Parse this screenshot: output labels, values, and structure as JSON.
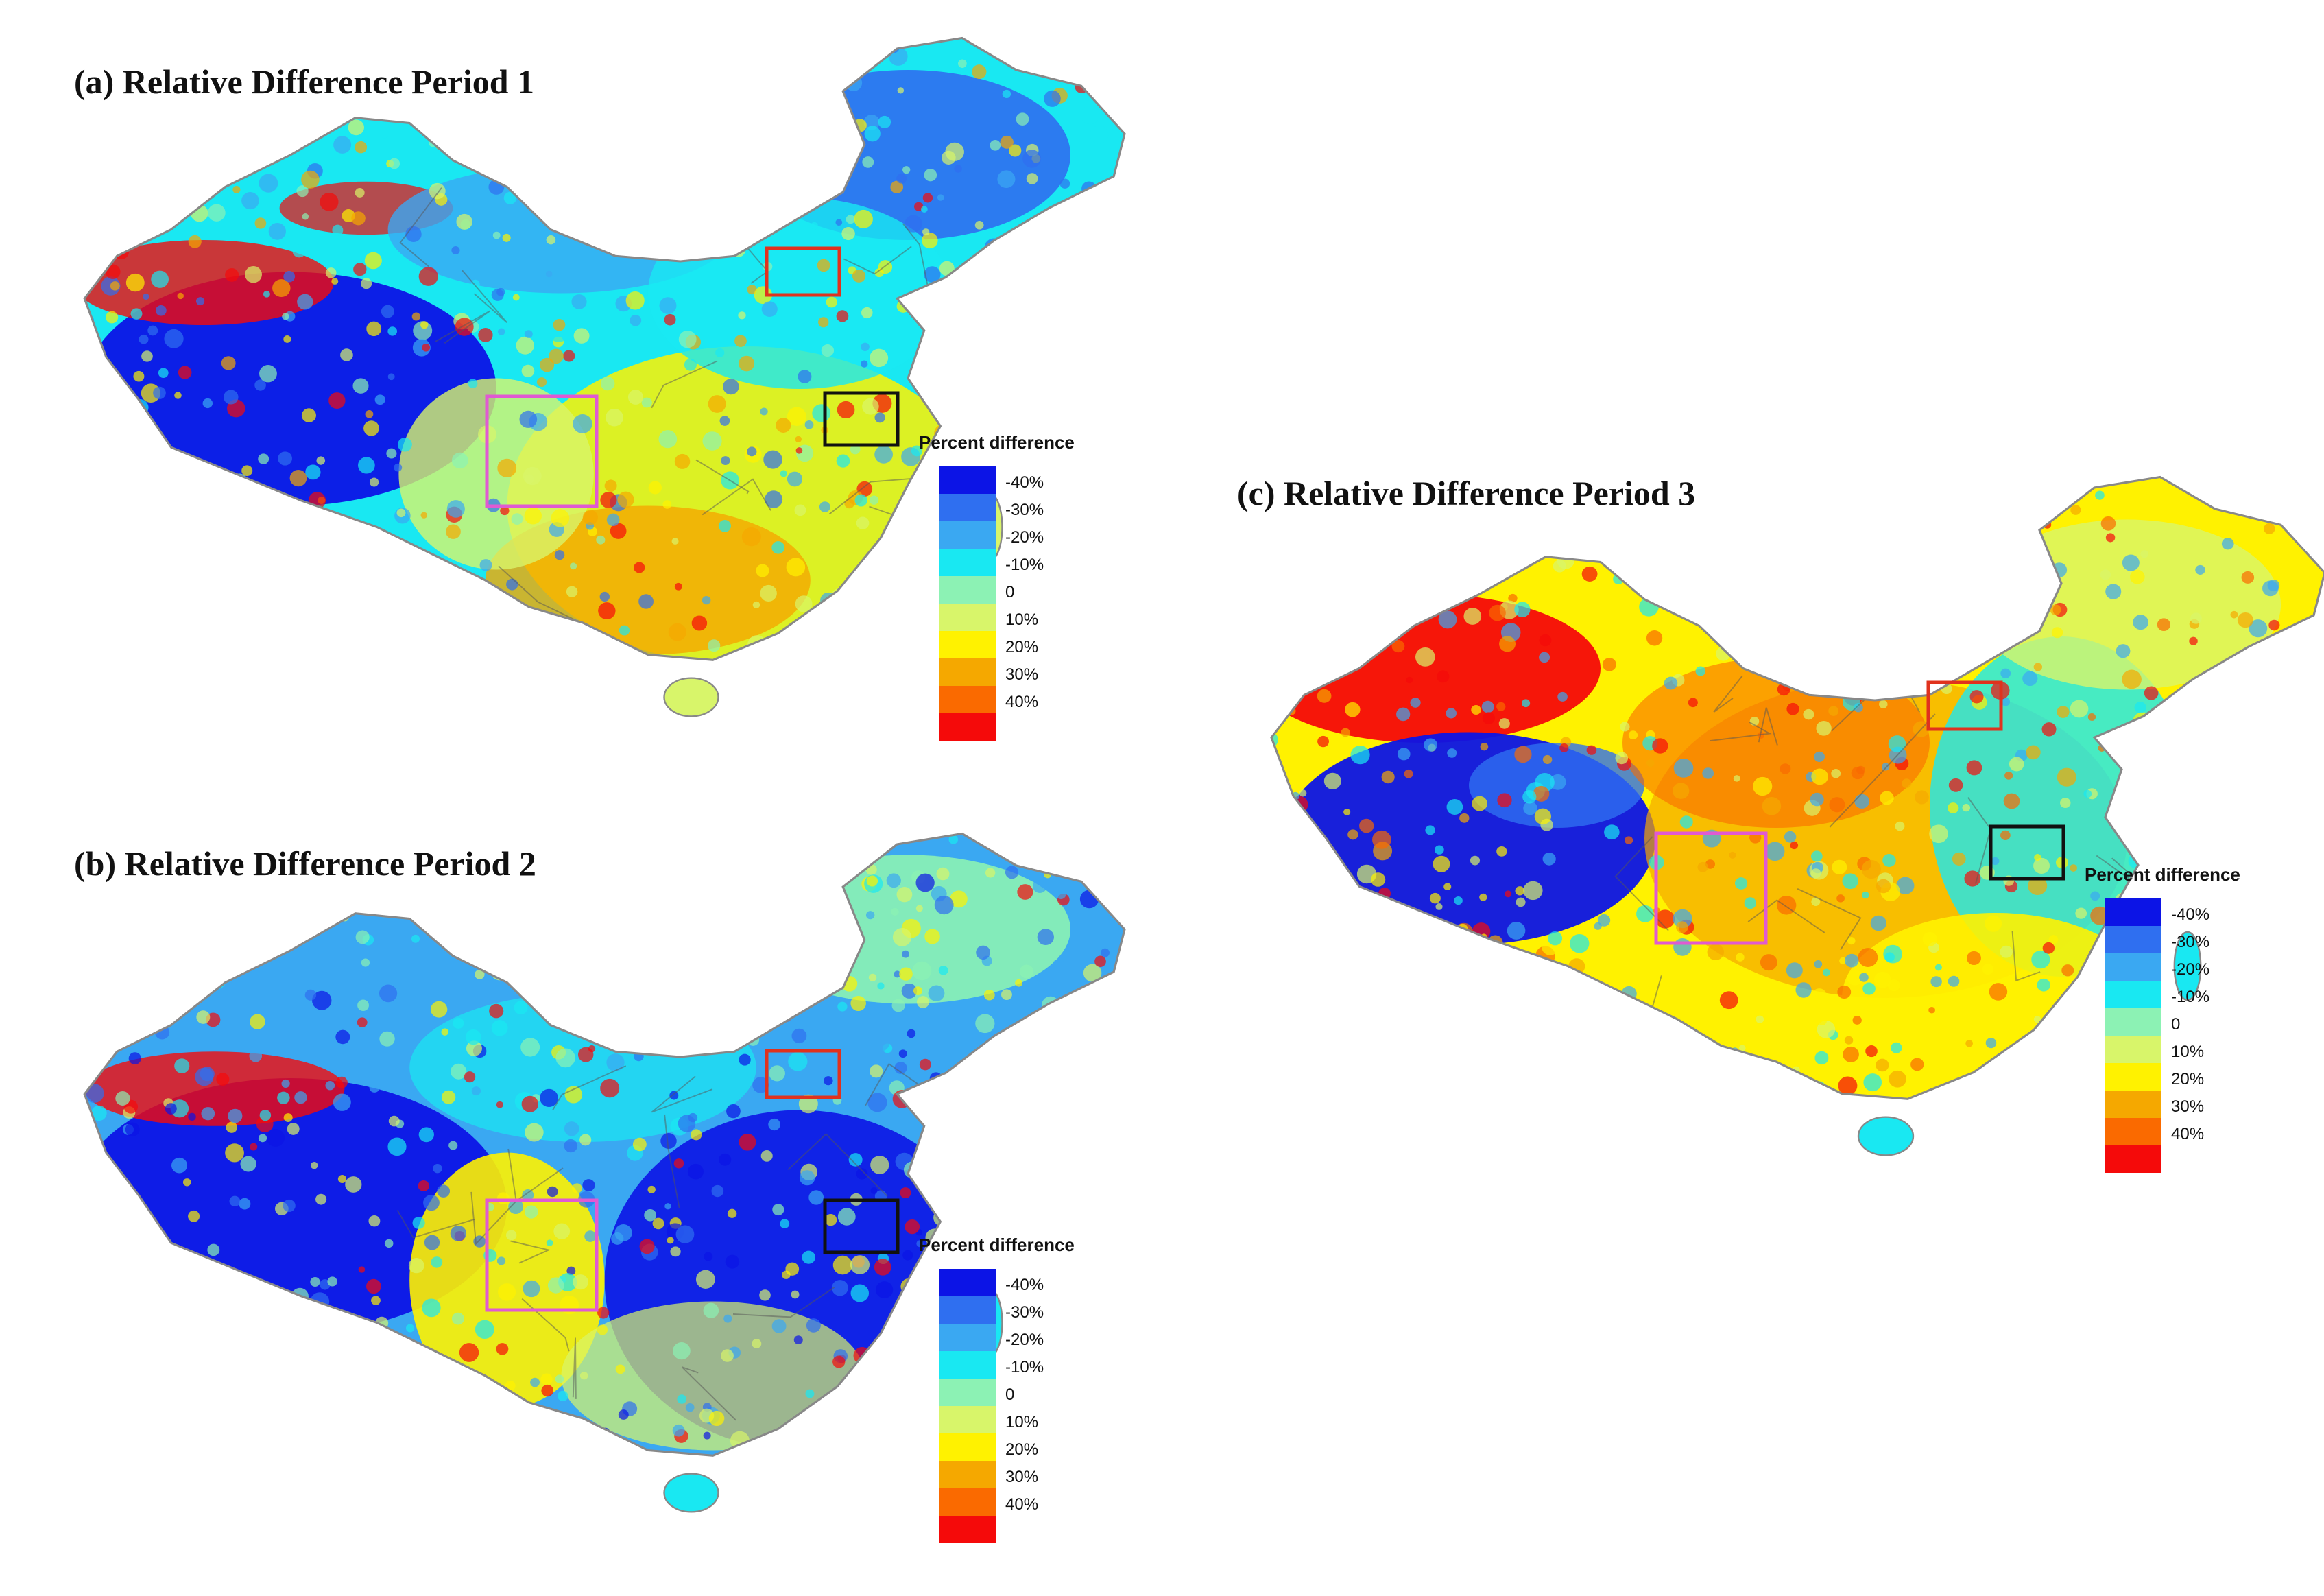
{
  "legend": {
    "title": "Percent difference",
    "items": [
      {
        "label": "-40%",
        "color": "#0c14e6"
      },
      {
        "label": "-30%",
        "color": "#2f6ff0"
      },
      {
        "label": "-20%",
        "color": "#3aa8f2"
      },
      {
        "label": "-10%",
        "color": "#19e8f2"
      },
      {
        "label": "0",
        "color": "#8cf2b4"
      },
      {
        "label": "10%",
        "color": "#d8f56a"
      },
      {
        "label": "20%",
        "color": "#fff200"
      },
      {
        "label": "30%",
        "color": "#f5a800"
      },
      {
        "label": "40%",
        "color": "#fa6a00"
      },
      {
        "label": "",
        "color": "#f50a0a"
      }
    ]
  },
  "panels": [
    {
      "id": "a",
      "title": "(a) Relative Difference Period 1",
      "legend_title": "Percent difference",
      "palette_bias": "cool-west warm-south"
    },
    {
      "id": "b",
      "title": "(b) Relative Difference Period 2",
      "legend_title": "Percent difference",
      "palette_bias": "cool"
    },
    {
      "id": "c",
      "title": "(c) Relative Difference Period 3",
      "legend_title": "Percent difference",
      "palette_bias": "warm"
    }
  ],
  "highlight_boxes": [
    {
      "name": "red-box",
      "color": "#e0321e"
    },
    {
      "name": "black-box",
      "color": "#111111"
    },
    {
      "name": "pink-box",
      "color": "#e05ad2"
    }
  ]
}
